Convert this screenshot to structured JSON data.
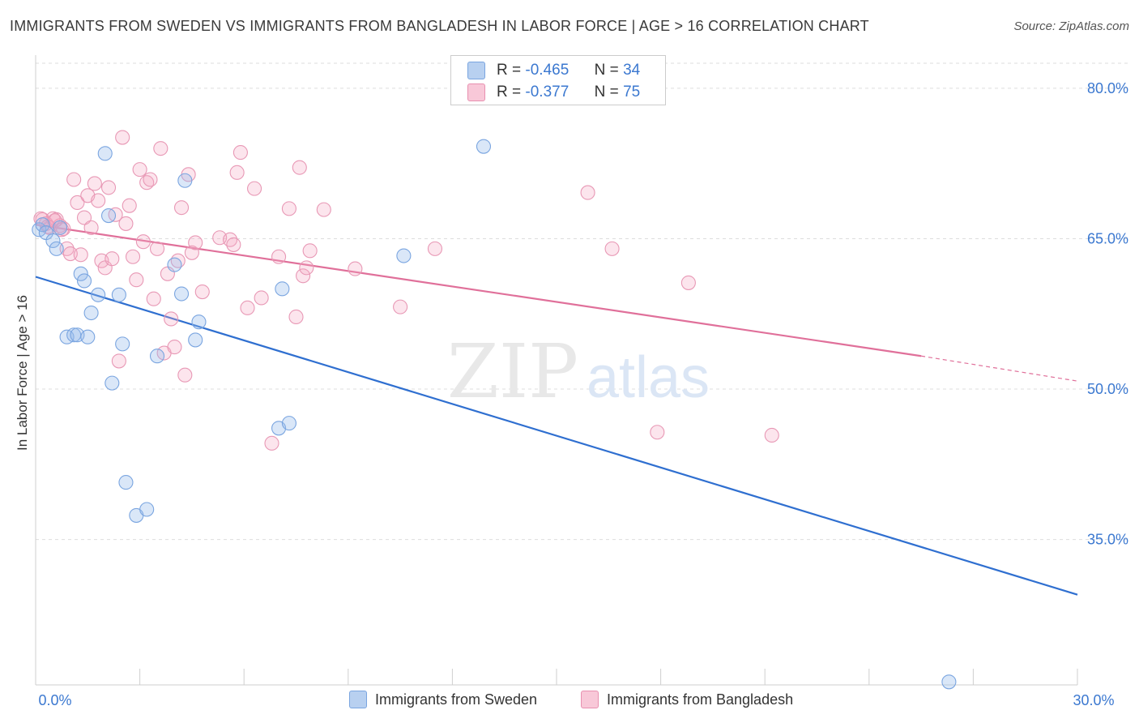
{
  "title": "IMMIGRANTS FROM SWEDEN VS IMMIGRANTS FROM BANGLADESH IN LABOR FORCE | AGE > 16 CORRELATION CHART",
  "source": "Source: ZipAtlas.com",
  "watermark": {
    "zip": "ZIP",
    "atlas": "atlas"
  },
  "stats": [
    {
      "r_label": "R =",
      "r_value": "-0.465",
      "n_label": "N =",
      "n_value": "34",
      "color": "#b8d0f0",
      "border": "#7aa5e0"
    },
    {
      "r_label": "R =",
      "r_value": "-0.377",
      "n_label": "N =",
      "n_value": "75",
      "color": "#f8c8d8",
      "border": "#e890b0"
    }
  ],
  "legend": [
    {
      "label": "Immigrants from Sweden",
      "color": "#b8d0f0",
      "border": "#7aa5e0"
    },
    {
      "label": "Immigrants from Bangladesh",
      "color": "#f8c8d8",
      "border": "#e890b0"
    }
  ],
  "colors": {
    "sweden_fill": "rgba(150,185,235,0.35)",
    "sweden_stroke": "#7aa5e0",
    "sweden_line": "#2f6fd0",
    "bangladesh_fill": "rgba(245,170,195,0.30)",
    "bangladesh_stroke": "#e898b5",
    "bangladesh_line": "#e0709a",
    "tick_text": "#3b78d0",
    "grid": "#dddddd"
  },
  "chart_data": {
    "type": "scatter",
    "ylabel": "In Labor Force | Age > 16",
    "xlabel": "",
    "xlim": [
      0,
      30
    ],
    "ylim": [
      20.5,
      82.5
    ],
    "x_tick_labels": [
      {
        "value": 0,
        "label": "0.0%"
      },
      {
        "value": 30,
        "label": "30.0%"
      }
    ],
    "y_tick_labels": [
      {
        "value": 80,
        "label": "80.0%"
      },
      {
        "value": 65,
        "label": "65.0%"
      },
      {
        "value": 50,
        "label": "50.0%"
      },
      {
        "value": 35,
        "label": "35.0%"
      }
    ],
    "grid": true,
    "series": [
      {
        "name": "Immigrants from Sweden",
        "points": [
          [
            0.1,
            65.9
          ],
          [
            0.2,
            66.4
          ],
          [
            0.3,
            65.6
          ],
          [
            0.5,
            64.8
          ],
          [
            0.6,
            64.0
          ],
          [
            0.7,
            66.1
          ],
          [
            1.3,
            61.5
          ],
          [
            1.4,
            60.8
          ],
          [
            1.6,
            57.6
          ],
          [
            1.8,
            59.4
          ],
          [
            0.9,
            55.2
          ],
          [
            1.1,
            55.4
          ],
          [
            1.2,
            55.4
          ],
          [
            1.5,
            55.2
          ],
          [
            2.0,
            73.5
          ],
          [
            2.1,
            67.3
          ],
          [
            2.4,
            59.4
          ],
          [
            2.5,
            54.5
          ],
          [
            2.2,
            50.6
          ],
          [
            2.6,
            40.7
          ],
          [
            2.9,
            37.4
          ],
          [
            3.2,
            38.0
          ],
          [
            3.5,
            53.3
          ],
          [
            4.0,
            62.4
          ],
          [
            4.2,
            59.5
          ],
          [
            4.3,
            70.8
          ],
          [
            4.6,
            54.9
          ],
          [
            4.7,
            56.7
          ],
          [
            7.0,
            46.1
          ],
          [
            7.3,
            46.6
          ],
          [
            7.1,
            60.0
          ],
          [
            10.6,
            63.3
          ],
          [
            12.9,
            74.2
          ],
          [
            26.3,
            20.8
          ]
        ],
        "trend": {
          "x": [
            0,
            30
          ],
          "y": [
            61.2,
            29.5
          ]
        }
      },
      {
        "name": "Immigrants from Bangladesh",
        "points": [
          [
            0.2,
            66.9
          ],
          [
            0.3,
            66.5
          ],
          [
            0.4,
            66.1
          ],
          [
            0.5,
            67.0
          ],
          [
            0.6,
            66.9
          ],
          [
            0.7,
            66.3
          ],
          [
            0.8,
            66.0
          ],
          [
            0.9,
            64.0
          ],
          [
            1.0,
            63.5
          ],
          [
            1.1,
            70.9
          ],
          [
            1.2,
            68.6
          ],
          [
            1.3,
            63.4
          ],
          [
            1.4,
            67.1
          ],
          [
            1.5,
            69.3
          ],
          [
            1.6,
            66.1
          ],
          [
            1.7,
            70.5
          ],
          [
            1.8,
            68.8
          ],
          [
            1.9,
            62.8
          ],
          [
            2.0,
            62.1
          ],
          [
            2.1,
            70.1
          ],
          [
            2.2,
            63.0
          ],
          [
            2.3,
            67.4
          ],
          [
            2.4,
            52.8
          ],
          [
            2.5,
            75.1
          ],
          [
            2.6,
            66.5
          ],
          [
            2.7,
            68.3
          ],
          [
            2.8,
            63.2
          ],
          [
            2.9,
            60.9
          ],
          [
            3.0,
            71.9
          ],
          [
            3.1,
            64.7
          ],
          [
            3.2,
            70.6
          ],
          [
            3.3,
            70.9
          ],
          [
            3.4,
            59.0
          ],
          [
            3.5,
            64.0
          ],
          [
            3.6,
            74.0
          ],
          [
            3.7,
            53.6
          ],
          [
            3.8,
            61.5
          ],
          [
            3.9,
            57.0
          ],
          [
            4.0,
            54.2
          ],
          [
            4.1,
            62.8
          ],
          [
            4.2,
            68.1
          ],
          [
            4.3,
            51.4
          ],
          [
            4.4,
            71.4
          ],
          [
            4.5,
            63.6
          ],
          [
            4.6,
            64.6
          ],
          [
            4.8,
            59.7
          ],
          [
            5.3,
            65.1
          ],
          [
            5.6,
            64.9
          ],
          [
            5.7,
            64.4
          ],
          [
            5.8,
            71.6
          ],
          [
            5.9,
            73.6
          ],
          [
            6.1,
            58.1
          ],
          [
            6.3,
            70.0
          ],
          [
            6.5,
            59.1
          ],
          [
            6.8,
            44.6
          ],
          [
            7.0,
            63.2
          ],
          [
            7.3,
            68.0
          ],
          [
            7.5,
            57.2
          ],
          [
            7.6,
            72.1
          ],
          [
            7.7,
            61.3
          ],
          [
            7.8,
            62.1
          ],
          [
            7.9,
            63.8
          ],
          [
            8.3,
            67.9
          ],
          [
            9.2,
            62.0
          ],
          [
            10.5,
            58.2
          ],
          [
            11.5,
            64.0
          ],
          [
            15.9,
            69.6
          ],
          [
            16.6,
            64.0
          ],
          [
            17.9,
            45.7
          ],
          [
            18.8,
            60.6
          ],
          [
            21.2,
            45.4
          ],
          [
            0.15,
            67.0
          ],
          [
            0.35,
            66.2
          ],
          [
            0.55,
            66.8
          ],
          [
            0.75,
            65.9
          ]
        ],
        "trend": {
          "x": [
            0,
            25.5
          ],
          "y": [
            66.4,
            53.3
          ],
          "dashed_x": [
            25.5,
            30
          ],
          "dashed_y": [
            53.3,
            50.8
          ]
        }
      }
    ]
  }
}
